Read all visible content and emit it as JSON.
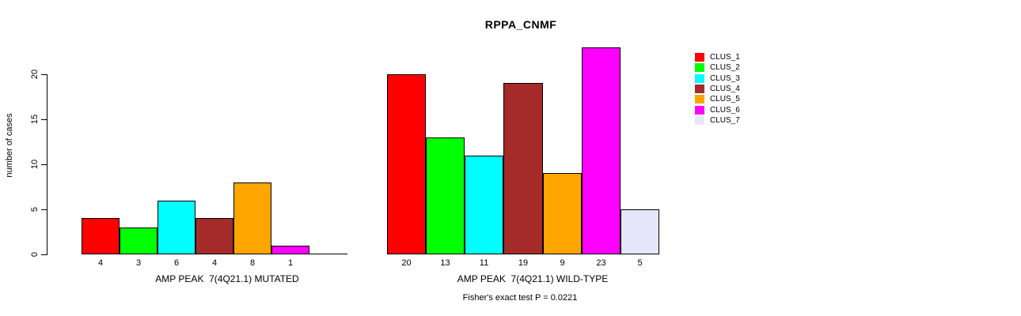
{
  "title": "RPPA_CNMF",
  "footer": "Fisher's exact test P = 0.0221",
  "y_axis": {
    "label": "number of cases",
    "tick_values": [
      0,
      5,
      10,
      15,
      20
    ]
  },
  "chart_data": [
    {
      "type": "bar",
      "panel": "left",
      "title": "RPPA_CNMF",
      "xlabel": "AMP PEAK  7(4Q21.1) MUTATED",
      "ylabel": "number of cases",
      "ylim": [
        0,
        20
      ],
      "grid": false,
      "categories": [
        "CLUS_1",
        "CLUS_2",
        "CLUS_3",
        "CLUS_4",
        "CLUS_5",
        "CLUS_6",
        "CLUS_7"
      ],
      "values": [
        4,
        3,
        6,
        4,
        8,
        1,
        0
      ],
      "bar_labels": [
        "4",
        "3",
        "6",
        "4",
        "8",
        "1",
        ""
      ],
      "colors": [
        "#FF0000",
        "#00FF00",
        "#00FFFF",
        "#A52A2A",
        "#FFA500",
        "#FF00FF",
        "#E6E6FA"
      ]
    },
    {
      "type": "bar",
      "panel": "right",
      "title": "RPPA_CNMF",
      "xlabel": "AMP PEAK  7(4Q21.1) WILD-TYPE",
      "ylabel": "number of cases",
      "ylim": [
        0,
        20
      ],
      "grid": false,
      "categories": [
        "CLUS_1",
        "CLUS_2",
        "CLUS_3",
        "CLUS_4",
        "CLUS_5",
        "CLUS_6",
        "CLUS_7"
      ],
      "values": [
        20,
        13,
        11,
        19,
        9,
        23,
        5
      ],
      "bar_labels": [
        "20",
        "13",
        "11",
        "19",
        "9",
        "23",
        "5"
      ],
      "colors": [
        "#FF0000",
        "#00FF00",
        "#00FFFF",
        "#A52A2A",
        "#FFA500",
        "#FF00FF",
        "#E6E6FA"
      ]
    }
  ],
  "legend": {
    "position": "right",
    "entries": [
      {
        "label": "CLUS_1",
        "color": "#FF0000"
      },
      {
        "label": "CLUS_2",
        "color": "#00FF00"
      },
      {
        "label": "CLUS_3",
        "color": "#00FFFF"
      },
      {
        "label": "CLUS_4",
        "color": "#A52A2A"
      },
      {
        "label": "CLUS_5",
        "color": "#FFA500"
      },
      {
        "label": "CLUS_6",
        "color": "#FF00FF"
      },
      {
        "label": "CLUS_7",
        "color": "#E6E6FA"
      }
    ]
  }
}
